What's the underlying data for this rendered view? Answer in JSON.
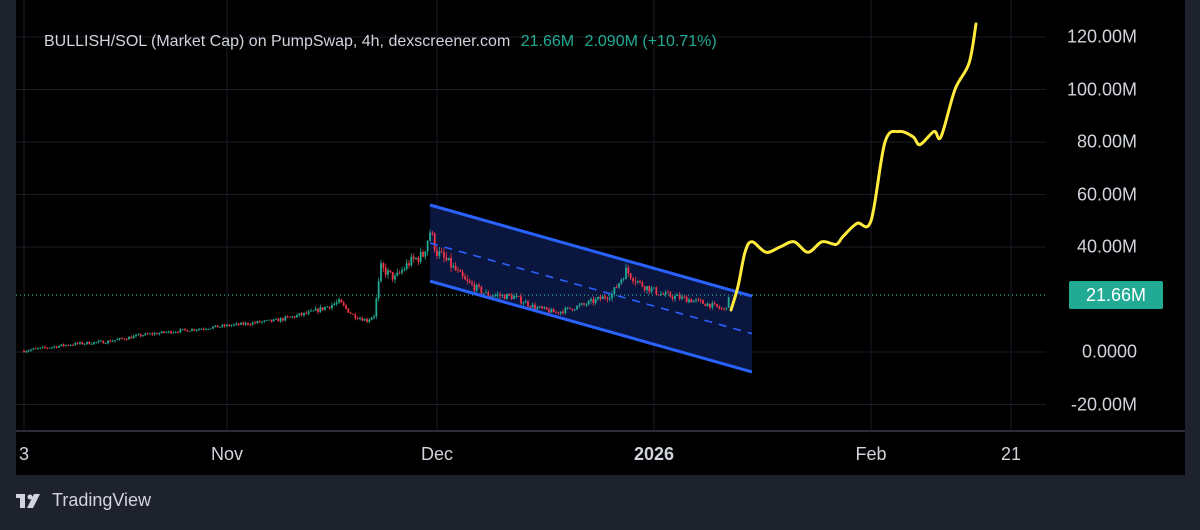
{
  "legend": {
    "symbol": "BULLISH/SOL (Market Cap) on PumpSwap, 4h, dexscreener.com",
    "last": "21.66M",
    "change": "2.090M (+10.71%)"
  },
  "brand": {
    "name": "TradingView"
  },
  "colors": {
    "up": "#22ab94",
    "down": "#f23645",
    "channel": "#2962ff",
    "channel_fill": "#0d1a4a",
    "projection": "#ffeb3b",
    "last_line": "#22ab94"
  },
  "chart_data": {
    "type": "candlestick",
    "title": "BULLISH/SOL (Market Cap) on PumpSwap, 4h, dexscreener.com",
    "ylim": [
      -27000000,
      130000000
    ],
    "y_ticks": [
      {
        "v": 120000000,
        "label": "120.00M"
      },
      {
        "v": 100000000,
        "label": "100.00M"
      },
      {
        "v": 80000000,
        "label": "80.00M"
      },
      {
        "v": 60000000,
        "label": "60.00M"
      },
      {
        "v": 40000000,
        "label": "40.00M"
      },
      {
        "v": 0,
        "label": "0.0000"
      },
      {
        "v": -20000000,
        "label": "-20.00M"
      }
    ],
    "x_ticks": [
      {
        "date": "2025-10-03",
        "label": "3",
        "bold": false
      },
      {
        "date": "2025-11-01",
        "label": "Nov",
        "bold": false
      },
      {
        "date": "2025-12-01",
        "label": "Dec",
        "bold": false
      },
      {
        "date": "2026-01-01",
        "label": "2026",
        "bold": true
      },
      {
        "date": "2026-02-01",
        "label": "Feb",
        "bold": false
      },
      {
        "date": "2026-02-21",
        "label": "21",
        "bold": false
      }
    ],
    "last_value": {
      "v": 21660000,
      "label": "21.66M"
    },
    "price_path_millions": [
      [
        "2025-10-03",
        0.5
      ],
      [
        "2025-10-10",
        3
      ],
      [
        "2025-10-15",
        4
      ],
      [
        "2025-10-20",
        6.5
      ],
      [
        "2025-10-25",
        8
      ],
      [
        "2025-11-01",
        10
      ],
      [
        "2025-11-08",
        12
      ],
      [
        "2025-11-13",
        15
      ],
      [
        "2025-11-17",
        19
      ],
      [
        "2025-11-19",
        14
      ],
      [
        "2025-11-21",
        12
      ],
      [
        "2025-11-22",
        14
      ],
      [
        "2025-11-23",
        32
      ],
      [
        "2025-11-25",
        28
      ],
      [
        "2025-11-27",
        34
      ],
      [
        "2025-11-29",
        37
      ],
      [
        "2025-11-30",
        46
      ],
      [
        "2025-12-01",
        38
      ],
      [
        "2025-12-03",
        33
      ],
      [
        "2025-12-05",
        27
      ],
      [
        "2025-12-08",
        22
      ],
      [
        "2025-12-12",
        21
      ],
      [
        "2025-12-15",
        17
      ],
      [
        "2025-12-18",
        15
      ],
      [
        "2025-12-22",
        18
      ],
      [
        "2025-12-26",
        22
      ],
      [
        "2025-12-28",
        31
      ],
      [
        "2025-12-30",
        26
      ],
      [
        "2026-01-02",
        22
      ],
      [
        "2026-01-06",
        20
      ],
      [
        "2026-01-09",
        18
      ],
      [
        "2026-01-11",
        16
      ],
      [
        "2026-01-12",
        21.66
      ]
    ],
    "channel_millions": {
      "upper": [
        [
          "2025-11-30",
          56
        ],
        [
          "2026-01-15",
          21.3
        ]
      ],
      "lower": [
        [
          "2025-11-30",
          27
        ],
        [
          "2026-01-15",
          -7.6
        ]
      ],
      "middle": [
        [
          "2025-11-30",
          41.5
        ],
        [
          "2026-01-15",
          7
        ]
      ]
    },
    "projection_millions": [
      [
        "2026-01-12",
        16
      ],
      [
        "2026-01-13",
        25
      ],
      [
        "2026-01-14",
        38
      ],
      [
        "2026-01-15",
        42
      ],
      [
        "2026-01-17",
        38
      ],
      [
        "2026-01-19",
        40
      ],
      [
        "2026-01-21",
        42
      ],
      [
        "2026-01-23",
        38
      ],
      [
        "2026-01-25",
        42
      ],
      [
        "2026-01-27",
        41
      ],
      [
        "2026-01-28",
        44
      ],
      [
        "2026-01-30",
        49
      ],
      [
        "2026-02-01",
        50
      ],
      [
        "2026-02-03",
        80
      ],
      [
        "2026-02-05",
        84
      ],
      [
        "2026-02-07",
        82
      ],
      [
        "2026-02-08",
        79
      ],
      [
        "2026-02-10",
        84
      ],
      [
        "2026-02-11",
        82
      ],
      [
        "2026-02-13",
        100
      ],
      [
        "2026-02-15",
        110
      ],
      [
        "2026-02-16",
        125
      ]
    ]
  }
}
